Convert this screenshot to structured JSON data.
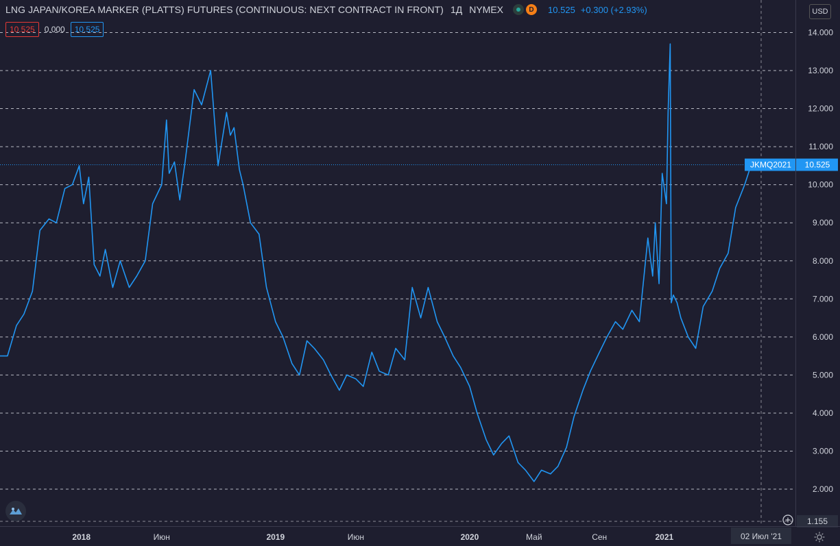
{
  "header": {
    "title": "LNG JAPAN/KOREA MARKER (PLATTS) FUTURES (CONTINUOUS: NEXT CONTRACT IN FRONT)",
    "interval": "1Д",
    "exchange": "NYMEX",
    "d_badge": "D",
    "last_price": "10.525",
    "change": "+0.300 (+2.93%)",
    "box_red": "10.525",
    "mid_value": "0.000",
    "box_blue": "10.525"
  },
  "price_axis": {
    "currency": "USD",
    "crosshair_value": "1.155"
  },
  "price_label": {
    "symbol": "JKMQ2021",
    "value": "10.525"
  },
  "time_axis": {
    "crosshair_date": "02 Июл '21"
  },
  "colors": {
    "background": "#1e1e2f",
    "line": "#2196f3",
    "grid": "#d1d4dc",
    "text": "#d1d4dc",
    "red": "#e53935"
  },
  "chart_data": {
    "type": "line",
    "symbol": "JKMQ2021",
    "ylim": [
      1.155,
      14.8
    ],
    "y_ticks": [
      "2.000",
      "3.000",
      "4.000",
      "5.000",
      "6.000",
      "7.000",
      "8.000",
      "9.000",
      "10.000",
      "11.000",
      "12.000",
      "13.000",
      "14.000"
    ],
    "x_range": [
      "2017-08-01",
      "2021-07-02"
    ],
    "x_ticks": [
      {
        "date": "2018-01-01",
        "label": "2018",
        "bold": true
      },
      {
        "date": "2018-06-01",
        "label": "Июн",
        "bold": false
      },
      {
        "date": "2019-01-01",
        "label": "2019",
        "bold": true
      },
      {
        "date": "2019-06-01",
        "label": "Июн",
        "bold": false
      },
      {
        "date": "2020-01-01",
        "label": "2020",
        "bold": true
      },
      {
        "date": "2020-05-01",
        "label": "Май",
        "bold": false
      },
      {
        "date": "2020-09-01",
        "label": "Сен",
        "bold": false
      },
      {
        "date": "2021-01-01",
        "label": "2021",
        "bold": true
      }
    ],
    "grid": "horizontal dashed",
    "last_value": 10.525,
    "x": [
      "2017-08-01",
      "2017-08-15",
      "2017-09-01",
      "2017-09-15",
      "2017-10-01",
      "2017-10-15",
      "2017-11-01",
      "2017-11-15",
      "2017-12-01",
      "2017-12-15",
      "2017-12-28",
      "2018-01-05",
      "2018-01-15",
      "2018-01-25",
      "2018-02-05",
      "2018-02-15",
      "2018-03-01",
      "2018-03-15",
      "2018-04-01",
      "2018-04-15",
      "2018-05-01",
      "2018-05-15",
      "2018-06-01",
      "2018-06-10",
      "2018-06-15",
      "2018-06-25",
      "2018-07-05",
      "2018-07-15",
      "2018-08-01",
      "2018-08-15",
      "2018-09-01",
      "2018-09-15",
      "2018-10-01",
      "2018-10-08",
      "2018-10-15",
      "2018-10-25",
      "2018-11-01",
      "2018-11-15",
      "2018-12-01",
      "2018-12-15",
      "2019-01-01",
      "2019-01-15",
      "2019-02-01",
      "2019-02-15",
      "2019-03-01",
      "2019-03-15",
      "2019-04-01",
      "2019-04-15",
      "2019-05-01",
      "2019-05-15",
      "2019-06-01",
      "2019-06-15",
      "2019-07-01",
      "2019-07-15",
      "2019-08-01",
      "2019-08-15",
      "2019-09-01",
      "2019-09-15",
      "2019-10-01",
      "2019-10-15",
      "2019-11-01",
      "2019-11-15",
      "2019-12-01",
      "2019-12-15",
      "2020-01-01",
      "2020-01-15",
      "2020-02-01",
      "2020-02-15",
      "2020-03-01",
      "2020-03-15",
      "2020-04-01",
      "2020-04-15",
      "2020-05-01",
      "2020-05-15",
      "2020-06-01",
      "2020-06-15",
      "2020-07-01",
      "2020-07-15",
      "2020-08-01",
      "2020-08-15",
      "2020-09-01",
      "2020-09-15",
      "2020-10-01",
      "2020-10-15",
      "2020-11-01",
      "2020-11-15",
      "2020-12-01",
      "2020-12-10",
      "2020-12-15",
      "2020-12-22",
      "2020-12-28",
      "2021-01-05",
      "2021-01-08",
      "2021-01-12",
      "2021-01-14",
      "2021-01-18",
      "2021-01-25",
      "2021-02-01",
      "2021-02-15",
      "2021-03-01",
      "2021-03-15",
      "2021-04-01",
      "2021-04-15",
      "2021-05-01",
      "2021-05-15",
      "2021-06-01",
      "2021-06-15",
      "2021-07-02"
    ],
    "y": [
      5.5,
      5.5,
      6.3,
      6.6,
      7.2,
      8.8,
      9.1,
      9.0,
      9.9,
      10.0,
      10.5,
      9.5,
      10.2,
      7.9,
      7.6,
      8.3,
      7.3,
      8.0,
      7.3,
      7.6,
      8.0,
      9.5,
      10.0,
      11.7,
      10.3,
      10.6,
      9.6,
      10.6,
      12.5,
      12.1,
      13.0,
      10.5,
      11.9,
      11.3,
      11.5,
      10.4,
      10.0,
      9.0,
      8.7,
      7.3,
      6.4,
      6.0,
      5.3,
      5.0,
      5.9,
      5.7,
      5.4,
      5.0,
      4.6,
      5.0,
      4.9,
      4.7,
      5.6,
      5.1,
      5.0,
      5.7,
      5.4,
      7.3,
      6.5,
      7.3,
      6.4,
      6.0,
      5.5,
      5.2,
      4.7,
      4.0,
      3.3,
      2.9,
      3.2,
      3.4,
      2.7,
      2.5,
      2.2,
      2.5,
      2.4,
      2.6,
      3.1,
      3.9,
      4.6,
      5.1,
      5.6,
      6.0,
      6.4,
      6.2,
      6.7,
      6.4,
      8.6,
      7.6,
      9.0,
      7.4,
      10.3,
      9.5,
      11.9,
      13.7,
      6.9,
      7.1,
      6.9,
      6.5,
      6.0,
      5.7,
      6.8,
      7.2,
      7.8,
      8.2,
      9.4,
      10.0,
      10.6,
      10.525
    ]
  }
}
